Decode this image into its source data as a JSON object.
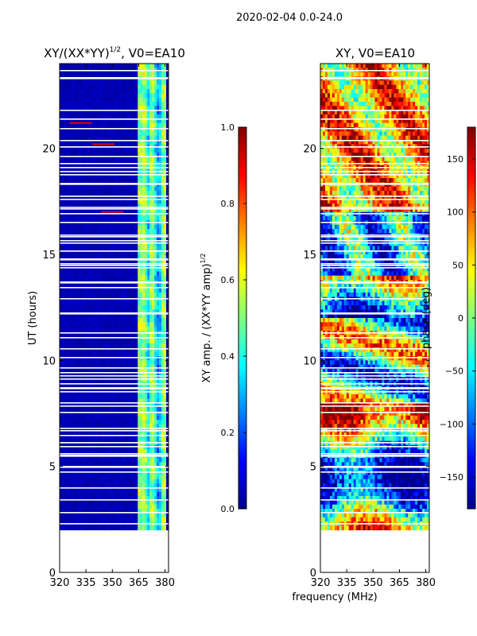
{
  "suptitle": "2020-02-04 0.0-24.0",
  "xlabel_shared": "frequency (MHz)",
  "colormap": [
    "#00008f",
    "#0000ff",
    "#0080ff",
    "#00ffff",
    "#80ff80",
    "#ffff00",
    "#ff8000",
    "#ff0000",
    "#800000"
  ],
  "chart_data": [
    {
      "type": "heatmap",
      "title_main": "XY/(XX*YY)",
      "title_sup": "1/2",
      "title_suffix": ", V0=EA10",
      "xlabel": "",
      "ylabel": "UT (hours)",
      "x_ticks": [
        320,
        335,
        350,
        365,
        380
      ],
      "y_ticks": [
        0,
        5,
        10,
        15,
        20
      ],
      "xlim": [
        320,
        382
      ],
      "ylim": [
        0,
        24
      ],
      "colorbar": {
        "label_main": "XY amp. / (XX*YY amp)",
        "label_sup": "1/2",
        "ticks": [
          "0.0",
          "0.2",
          "0.4",
          "0.6",
          "0.8",
          "1.0"
        ],
        "tick_values": [
          0,
          0.2,
          0.4,
          0.6,
          0.8,
          1.0
        ],
        "range": [
          0,
          1
        ]
      },
      "data_gap_hours": [
        0.1,
        2.1
      ],
      "high_band_mhz": [
        364,
        380
      ],
      "bright_spots": [
        {
          "freq": 345,
          "ut": 20.2
        },
        {
          "freq": 350,
          "ut": 17.0
        },
        {
          "freq": 332,
          "ut": 21.2
        }
      ]
    },
    {
      "type": "heatmap",
      "title_main": "XY, V0=EA10",
      "xlabel": "frequency (MHz)",
      "ylabel": "",
      "x_ticks": [
        320,
        335,
        350,
        365,
        380
      ],
      "y_ticks": [
        0,
        5,
        10,
        15,
        20
      ],
      "xlim": [
        320,
        382
      ],
      "ylim": [
        0,
        24
      ],
      "colorbar": {
        "label_main": "phase (deg)",
        "ticks": [
          "−150",
          "−100",
          "−50",
          "0",
          "50",
          "100",
          "150"
        ],
        "tick_values": [
          -150,
          -100,
          -50,
          0,
          50,
          100,
          150
        ],
        "range": [
          -180,
          180
        ]
      },
      "data_gap_hours": [
        0.1,
        2.1
      ]
    }
  ]
}
